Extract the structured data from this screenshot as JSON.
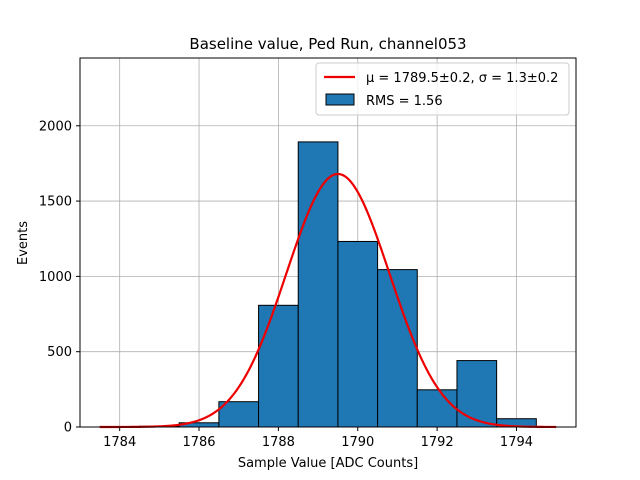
{
  "chart_data": {
    "type": "bar",
    "title": "Baseline value, Ped Run, channel053",
    "xlabel": "Sample Value [ADC Counts]",
    "ylabel": "Events",
    "xlim": [
      1783,
      1795.5
    ],
    "ylim": [
      0,
      2450
    ],
    "xticks": [
      1784,
      1786,
      1788,
      1790,
      1792,
      1794
    ],
    "yticks": [
      0,
      500,
      1000,
      1500,
      2000
    ],
    "grid": true,
    "legend_placement": "top-right",
    "histogram": {
      "name": "RMS = 1.56",
      "color": "#1f77b4",
      "edgecolor": "#000000",
      "bin_edges": [
        1783.5,
        1784.5,
        1785.5,
        1786.5,
        1787.5,
        1788.5,
        1789.5,
        1790.5,
        1791.5,
        1792.5,
        1793.5,
        1794.5
      ],
      "values": [
        2,
        5,
        28,
        168,
        808,
        1893,
        1232,
        1045,
        247,
        441,
        55
      ]
    },
    "fit": {
      "name_mu": "μ = 1789.5±0.2,",
      "name_sigma": "σ = 1.3±0.2",
      "color": "#ee0000",
      "x_start": 1783.5,
      "x_end": 1795.0,
      "amplitude": 1680,
      "mu": 1789.5,
      "sigma": 1.3
    }
  }
}
